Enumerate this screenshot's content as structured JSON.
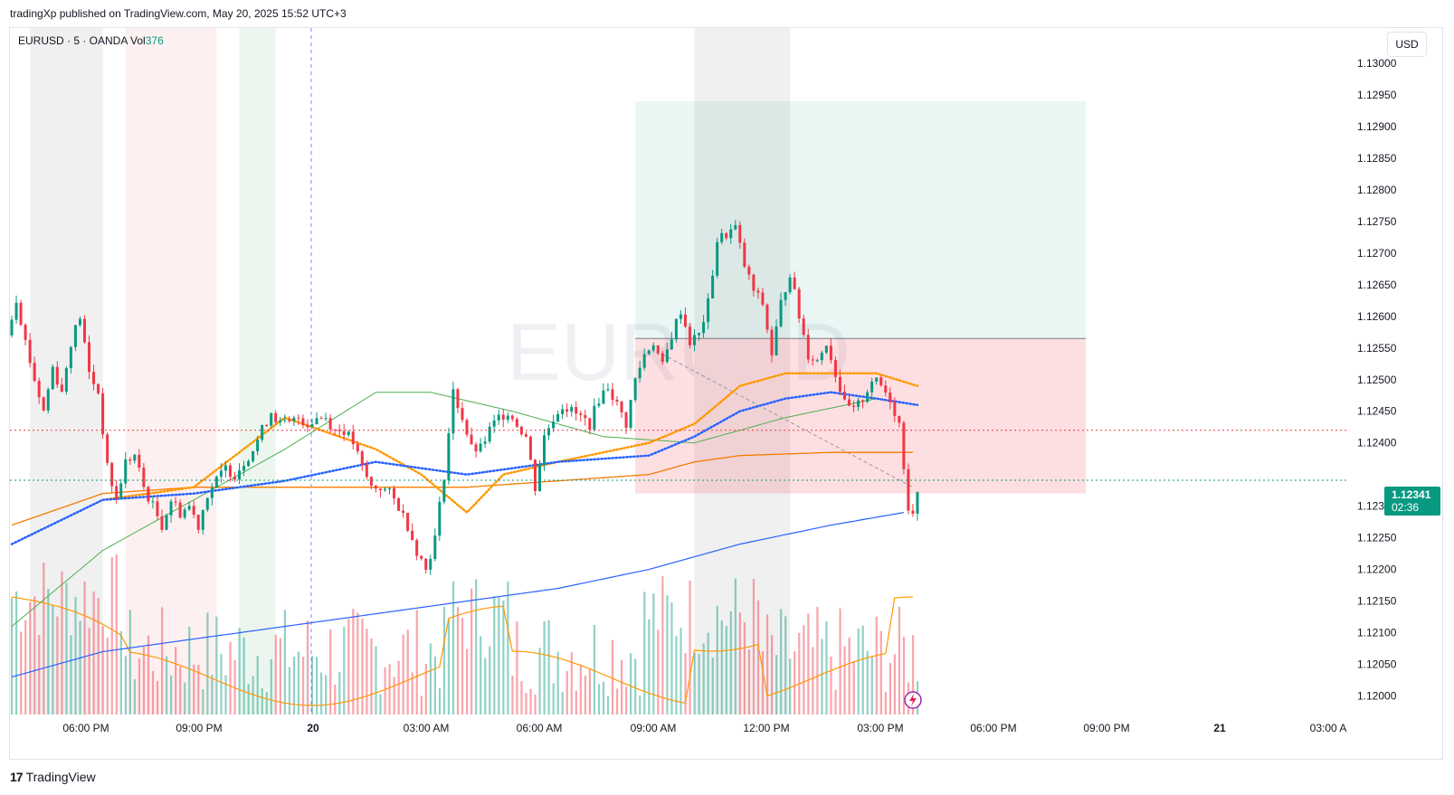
{
  "header": {
    "published": "tradingXp published on TradingView.com, May 20, 2025 15:52 UTC+3"
  },
  "legend": {
    "symbol": "EURUSD · 5 · OANDA",
    "vol_label": "Vol",
    "vol_value": "376"
  },
  "currency_button": "USD",
  "last_price": {
    "price": "1.12341",
    "countdown": "02:36"
  },
  "brand": {
    "logo": "17",
    "name": "TradingView"
  },
  "watermark": "EURUSD",
  "colors": {
    "up": "#089981",
    "down": "#f23645",
    "ema_orange_dark": "#f57c00",
    "ema_orange": "#ff9800",
    "ema_blue": "#2962ff",
    "ma_green": "#4caf50",
    "ma_blue": "#2962ff",
    "grid": "#f0f3fa"
  },
  "chart_data": {
    "type": "candlestick",
    "symbol": "EURUSD",
    "timeframe": "5",
    "ylim": [
      1.1198,
      1.1305
    ],
    "y_ticks": [
      "1.13000",
      "1.12950",
      "1.12900",
      "1.12850",
      "1.12800",
      "1.12750",
      "1.12700",
      "1.12650",
      "1.12600",
      "1.12550",
      "1.12500",
      "1.12450",
      "1.12400",
      "1.12300",
      "1.12250",
      "1.12200",
      "1.12150",
      "1.12100",
      "1.12050",
      "1.12000"
    ],
    "x_ticks": [
      {
        "label": "06:00 PM",
        "bold": false
      },
      {
        "label": "09:00 PM",
        "bold": false
      },
      {
        "label": "20",
        "bold": true
      },
      {
        "label": "03:00 AM",
        "bold": false
      },
      {
        "label": "06:00 AM",
        "bold": false
      },
      {
        "label": "09:00 AM",
        "bold": false
      },
      {
        "label": "12:00 PM",
        "bold": false
      },
      {
        "label": "03:00 PM",
        "bold": false
      },
      {
        "label": "06:00 PM",
        "bold": false
      },
      {
        "label": "09:00 PM",
        "bold": false
      },
      {
        "label": "21",
        "bold": true
      },
      {
        "label": "03:00 A",
        "bold": false
      }
    ],
    "price_path": [
      [
        0,
        1.1257
      ],
      [
        2,
        1.1263
      ],
      [
        4,
        1.1256
      ],
      [
        6,
        1.125
      ],
      [
        8,
        1.1245
      ],
      [
        10,
        1.1252
      ],
      [
        12,
        1.1248
      ],
      [
        14,
        1.1256
      ],
      [
        16,
        1.126
      ],
      [
        18,
        1.1251
      ],
      [
        20,
        1.1248
      ],
      [
        22,
        1.1236
      ],
      [
        24,
        1.1231
      ],
      [
        26,
        1.1237
      ],
      [
        28,
        1.1238
      ],
      [
        30,
        1.1233
      ],
      [
        32,
        1.123
      ],
      [
        34,
        1.1227
      ],
      [
        36,
        1.1231
      ],
      [
        38,
        1.1229
      ],
      [
        40,
        1.123
      ],
      [
        42,
        1.1227
      ],
      [
        44,
        1.1232
      ],
      [
        46,
        1.1234
      ],
      [
        48,
        1.1236
      ],
      [
        50,
        1.1235
      ],
      [
        52,
        1.1237
      ],
      [
        54,
        1.1239
      ],
      [
        56,
        1.1242
      ],
      [
        58,
        1.1245
      ],
      [
        60,
        1.1243
      ],
      [
        62,
        1.1243
      ],
      [
        64,
        1.1244
      ],
      [
        66,
        1.1243
      ],
      [
        68,
        1.1244
      ],
      [
        70,
        1.1244
      ],
      [
        72,
        1.1242
      ],
      [
        74,
        1.1242
      ],
      [
        76,
        1.124
      ],
      [
        78,
        1.1236
      ],
      [
        80,
        1.1233
      ],
      [
        82,
        1.1233
      ],
      [
        84,
        1.1232
      ],
      [
        86,
        1.123
      ],
      [
        88,
        1.1227
      ],
      [
        90,
        1.1223
      ],
      [
        92,
        1.122
      ],
      [
        94,
        1.1225
      ],
      [
        96,
        1.1235
      ],
      [
        98,
        1.1248
      ],
      [
        100,
        1.1244
      ],
      [
        102,
        1.1239
      ],
      [
        104,
        1.1239
      ],
      [
        106,
        1.1242
      ],
      [
        108,
        1.1244
      ],
      [
        110,
        1.1245
      ],
      [
        112,
        1.1243
      ],
      [
        114,
        1.1241
      ],
      [
        116,
        1.1233
      ],
      [
        118,
        1.1241
      ],
      [
        120,
        1.1244
      ],
      [
        122,
        1.1246
      ],
      [
        124,
        1.1245
      ],
      [
        126,
        1.1244
      ],
      [
        128,
        1.1243
      ],
      [
        130,
        1.1247
      ],
      [
        132,
        1.1249
      ],
      [
        134,
        1.1246
      ],
      [
        136,
        1.1243
      ],
      [
        138,
        1.125
      ],
      [
        140,
        1.1254
      ],
      [
        142,
        1.1256
      ],
      [
        144,
        1.1252
      ],
      [
        146,
        1.1257
      ],
      [
        148,
        1.1261
      ],
      [
        150,
        1.1256
      ],
      [
        152,
        1.1257
      ],
      [
        154,
        1.1262
      ],
      [
        156,
        1.1272
      ],
      [
        158,
        1.1273
      ],
      [
        160,
        1.1274
      ],
      [
        162,
        1.1268
      ],
      [
        164,
        1.1264
      ],
      [
        166,
        1.1262
      ],
      [
        168,
        1.1254
      ],
      [
        170,
        1.1262
      ],
      [
        172,
        1.1267
      ],
      [
        174,
        1.126
      ],
      [
        176,
        1.1254
      ],
      [
        178,
        1.1253
      ],
      [
        180,
        1.1256
      ],
      [
        182,
        1.1251
      ],
      [
        184,
        1.1246
      ],
      [
        186,
        1.1245
      ],
      [
        188,
        1.1247
      ],
      [
        190,
        1.125
      ],
      [
        192,
        1.1249
      ],
      [
        194,
        1.1247
      ],
      [
        196,
        1.1243
      ],
      [
        198,
        1.123
      ],
      [
        199,
        1.1228
      ],
      [
        200,
        1.1233
      ]
    ],
    "ema_orange_dark": [
      [
        0,
        1.1227
      ],
      [
        20,
        1.1232
      ],
      [
        40,
        1.1233
      ],
      [
        60,
        1.1233
      ],
      [
        80,
        1.1233
      ],
      [
        100,
        1.1233
      ],
      [
        120,
        1.1234
      ],
      [
        140,
        1.1235
      ],
      [
        150,
        1.1237
      ],
      [
        160,
        1.1238
      ],
      [
        180,
        1.12385
      ],
      [
        198,
        1.12385
      ]
    ],
    "ema_orange": [
      [
        20,
        1.1231
      ],
      [
        40,
        1.1233
      ],
      [
        60,
        1.1244
      ],
      [
        80,
        1.1239
      ],
      [
        90,
        1.1235
      ],
      [
        100,
        1.1229
      ],
      [
        108,
        1.1235
      ],
      [
        120,
        1.1237
      ],
      [
        140,
        1.124
      ],
      [
        150,
        1.1243
      ],
      [
        160,
        1.1249
      ],
      [
        170,
        1.1251
      ],
      [
        180,
        1.1251
      ],
      [
        190,
        1.1251
      ],
      [
        199,
        1.1249
      ]
    ],
    "ema_blue": [
      [
        0,
        1.1224
      ],
      [
        20,
        1.1231
      ],
      [
        40,
        1.1232
      ],
      [
        60,
        1.1234
      ],
      [
        80,
        1.1237
      ],
      [
        100,
        1.1235
      ],
      [
        120,
        1.1237
      ],
      [
        140,
        1.1238
      ],
      [
        150,
        1.1241
      ],
      [
        160,
        1.1245
      ],
      [
        170,
        1.1247
      ],
      [
        180,
        1.1248
      ],
      [
        190,
        1.1247
      ],
      [
        199,
        1.1246
      ]
    ],
    "ma_green": [
      [
        0,
        1.1211
      ],
      [
        20,
        1.1223
      ],
      [
        40,
        1.1231
      ],
      [
        60,
        1.1239
      ],
      [
        80,
        1.1248
      ],
      [
        92,
        1.1248
      ],
      [
        110,
        1.1245
      ],
      [
        130,
        1.1241
      ],
      [
        150,
        1.124
      ],
      [
        170,
        1.1244
      ],
      [
        190,
        1.1247
      ],
      [
        199,
        1.1246
      ]
    ],
    "ma_blue": [
      [
        0,
        1.1203
      ],
      [
        20,
        1.1207
      ],
      [
        40,
        1.1209
      ],
      [
        60,
        1.1211
      ],
      [
        80,
        1.1213
      ],
      [
        100,
        1.1215
      ],
      [
        120,
        1.1217
      ],
      [
        140,
        1.122
      ],
      [
        160,
        1.1224
      ],
      [
        180,
        1.1227
      ],
      [
        196,
        1.1229
      ]
    ],
    "volume_bars_count": 200,
    "position_tool": {
      "entry": 1.12565,
      "target": 1.1294,
      "stop": 1.1232,
      "start_index": 137,
      "end_index": 236
    },
    "horizontal_lines": [
      {
        "price": 1.1242,
        "style": "dotted",
        "color": "#f23645"
      },
      {
        "price": 1.12341,
        "style": "dotted",
        "color": "#089981"
      }
    ],
    "session_bands": [
      {
        "from": 4,
        "to": 20,
        "color": "#f0f0f0"
      },
      {
        "from": 25,
        "to": 45,
        "color": "#fdf0f0"
      },
      {
        "from": 50,
        "to": 58,
        "color": "#edf6ee"
      },
      {
        "from": 150,
        "to": 171,
        "color": "#f0f0f0"
      }
    ],
    "last_price": 1.12341
  }
}
